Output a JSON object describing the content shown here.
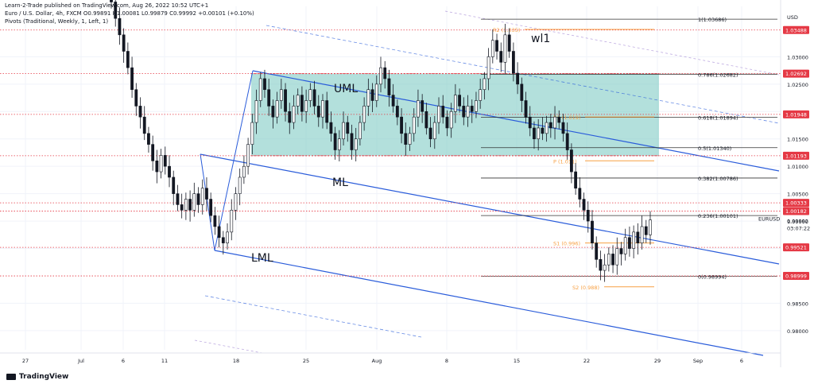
{
  "header": {
    "publisher": "Learn-2-Trade published on TradingView.com, Aug 26, 2022 10:52 UTC+1",
    "symbol_line": "Euro / U.S. Dollar, 4h, FXCM  O0.99891 H1.00081 L0.99879 C0.99992 +0.00101 (+0.10%)",
    "indicator_line": "Pivots (Traditional, Weekly, 1, Left, 1)"
  },
  "branding": {
    "label": "TradingView"
  },
  "chart_data": {
    "type": "candlestick",
    "symbol": "EURUSD",
    "timeframe": "4h",
    "currency_label": "USD",
    "x_ticks": [
      "27",
      "Jul",
      "6",
      "11",
      "18",
      "25",
      "Aug",
      "8",
      "15",
      "22",
      "29",
      "Sep",
      "6"
    ],
    "y_ticks": [
      "1.03000",
      "1.02500",
      "1.02000",
      "1.01500",
      "1.01000",
      "1.00500",
      "1.00000",
      "0.99500",
      "0.98500",
      "0.98000"
    ],
    "ylim": [
      0.9765,
      1.0392
    ],
    "last_price": {
      "symbol": "EURUSD",
      "value": "0.99992",
      "countdown": "03:07:22"
    },
    "price_badges": [
      {
        "value": "1.03488",
        "color": "#e53945"
      },
      {
        "value": "1.02692",
        "color": "#e53945"
      },
      {
        "value": "1.01948",
        "color": "#e53945"
      },
      {
        "value": "1.01193",
        "color": "#e53945"
      },
      {
        "value": "1.00333",
        "color": "#e53945"
      },
      {
        "value": "1.00182",
        "color": "#e53945"
      },
      {
        "value": "0.99521",
        "color": "#e53945"
      },
      {
        "value": "0.98999",
        "color": "#e53945"
      }
    ],
    "fibonacci": [
      {
        "label": "1(1.03686)",
        "price": 1.03686
      },
      {
        "label": "0.786(1.02682)",
        "price": 1.02682
      },
      {
        "label": "0.618(1.01894)",
        "price": 1.01894
      },
      {
        "label": "0.5(1.01340)",
        "price": 1.0134
      },
      {
        "label": "0.382(1.00786)",
        "price": 1.00786
      },
      {
        "label": "0.236(1.00101)",
        "price": 1.00101
      },
      {
        "label": "0(0.98994)",
        "price": 0.98994
      }
    ],
    "pivots": [
      {
        "label": "R2 (1.035)",
        "price": 1.035
      },
      {
        "label": "R1 (1.019)",
        "price": 1.019
      },
      {
        "label": "P (1.011)",
        "price": 1.011
      },
      {
        "label": "S1 (0.996)",
        "price": 0.996
      },
      {
        "label": "S2 (0.988)",
        "price": 0.988
      }
    ],
    "annotations": [
      {
        "text": "wl1"
      },
      {
        "text": "UML"
      },
      {
        "text": "ML"
      },
      {
        "text": "LML"
      }
    ],
    "range_box": {
      "top": 1.02692,
      "bottom": 1.01193,
      "color": "#80cbc4"
    },
    "candles_close": [
      1.04,
      1.037,
      1.034,
      1.031,
      1.028,
      1.024,
      1.021,
      1.019,
      1.016,
      1.014,
      1.011,
      1.009,
      1.012,
      1.01,
      1.008,
      1.005,
      1.003,
      1.002,
      1.004,
      1.002,
      1.005,
      1.003,
      1.006,
      1.004,
      1.001,
      0.999,
      0.997,
      0.996,
      0.998,
      1.002,
      1.005,
      1.008,
      1.01,
      1.014,
      1.018,
      1.022,
      1.026,
      1.024,
      1.021,
      1.019,
      1.022,
      1.024,
      1.02,
      1.018,
      1.021,
      1.023,
      1.02,
      1.022,
      1.024,
      1.021,
      1.019,
      1.022,
      1.018,
      1.016,
      1.013,
      1.015,
      1.018,
      1.016,
      1.013,
      1.015,
      1.018,
      1.021,
      1.024,
      1.022,
      1.025,
      1.028,
      1.026,
      1.023,
      1.021,
      1.019,
      1.016,
      1.014,
      1.016,
      1.019,
      1.022,
      1.02,
      1.017,
      1.015,
      1.018,
      1.021,
      1.019,
      1.017,
      1.02,
      1.023,
      1.021,
      1.019,
      1.021,
      1.02,
      1.022,
      1.024,
      1.026,
      1.03,
      1.033,
      1.031,
      1.029,
      1.034,
      1.031,
      1.027,
      1.025,
      1.022,
      1.019,
      1.017,
      1.015,
      1.017,
      1.016,
      1.018,
      1.017,
      1.019,
      1.018,
      1.016,
      1.013,
      1.009,
      1.006,
      1.004,
      1.002,
      1.0,
      0.996,
      0.993,
      0.991,
      0.992,
      0.994,
      0.992,
      0.995,
      0.994,
      0.997,
      0.995,
      0.998,
      0.996,
      0.999,
      0.9975,
      1.0002
    ]
  }
}
